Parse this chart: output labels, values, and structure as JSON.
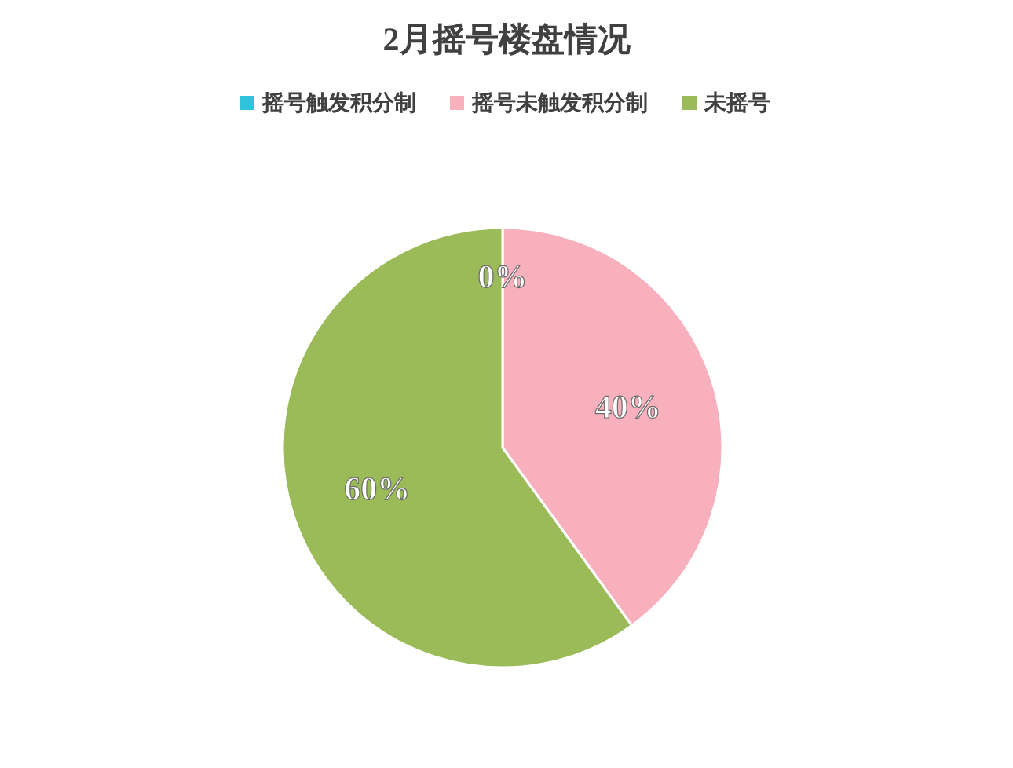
{
  "chart_data": {
    "type": "pie",
    "title": "2月摇号楼盘情况",
    "categories": [
      "摇号触发积分制",
      "摇号未触发积分制",
      "未摇号"
    ],
    "values": [
      0,
      40,
      60
    ],
    "colors": [
      "#2fc3dc",
      "#f9b0bd",
      "#9bbb59"
    ],
    "value_labels": [
      "0%",
      "40%",
      "60%"
    ],
    "legend": "top"
  }
}
